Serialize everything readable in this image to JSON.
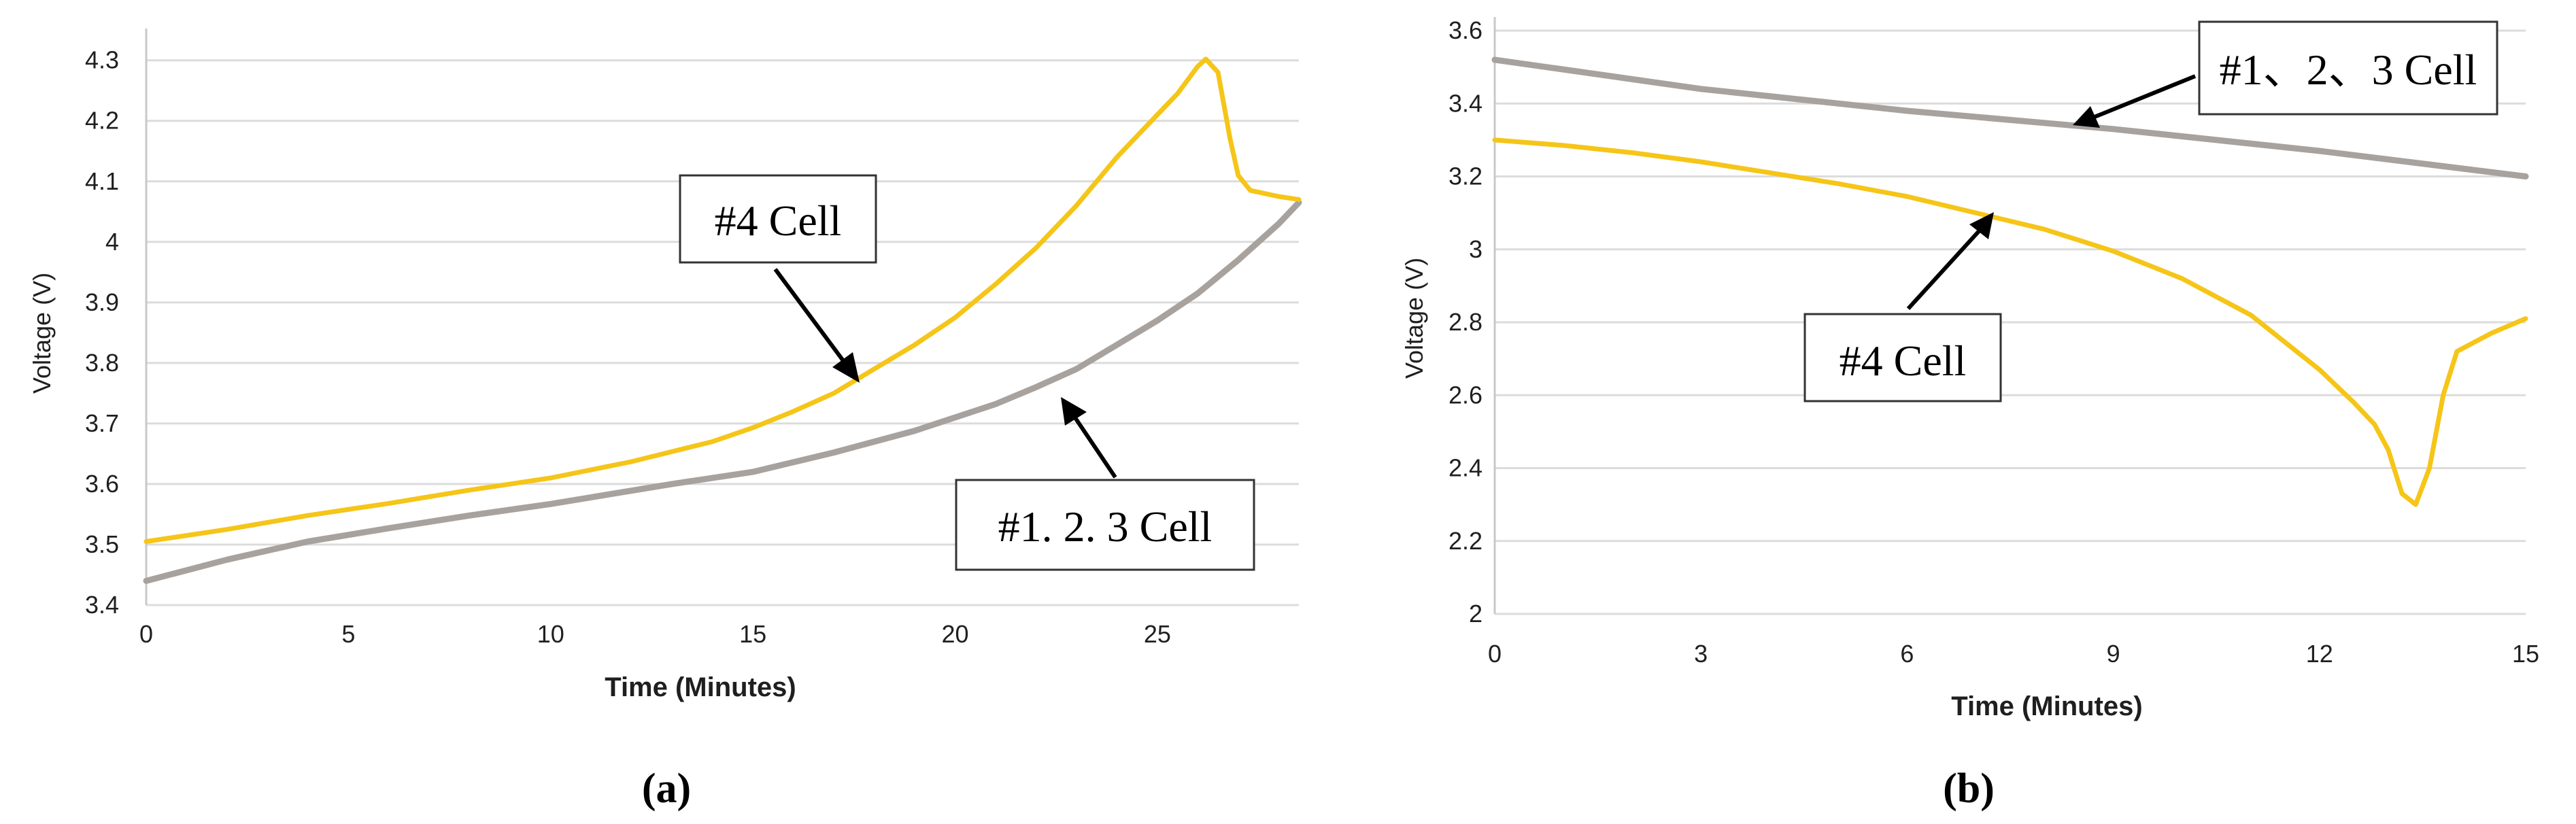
{
  "chart_data": [
    {
      "type": "line",
      "panel_label": "(a)",
      "xlabel": "Time (Minutes)",
      "ylabel": "Voltage (V)",
      "xlim": [
        0,
        28.5
      ],
      "ylim": [
        3.4,
        4.33
      ],
      "x_ticks": [
        0,
        5,
        10,
        15,
        20,
        25
      ],
      "y_ticks": [
        3.4,
        3.5,
        3.6,
        3.7,
        3.8,
        3.9,
        4,
        4.1,
        4.2,
        4.3
      ],
      "grid": true,
      "series": [
        {
          "name": "#4 Cell",
          "color": "#f5c518",
          "x": [
            0,
            2,
            4,
            6,
            8,
            9,
            10,
            12,
            14,
            15,
            16,
            17,
            18,
            19,
            20,
            21,
            22,
            23,
            24,
            25,
            25.5,
            26,
            26.2,
            26.5,
            26.8,
            27,
            27.3,
            28,
            28.5
          ],
          "y": [
            3.505,
            3.525,
            3.548,
            3.568,
            3.59,
            3.6,
            3.61,
            3.637,
            3.67,
            3.693,
            3.72,
            3.75,
            3.79,
            3.83,
            3.875,
            3.93,
            3.99,
            4.06,
            4.14,
            4.21,
            4.245,
            4.29,
            4.302,
            4.28,
            4.17,
            4.11,
            4.085,
            4.075,
            4.07
          ]
        },
        {
          "name": "#1. 2. 3 Cell",
          "color": "#a8a29e",
          "x": [
            0,
            2,
            4,
            6,
            8,
            10,
            13,
            15,
            17,
            19,
            20,
            21,
            22,
            23,
            24,
            25,
            26,
            27,
            28,
            28.5
          ],
          "y": [
            3.44,
            3.475,
            3.505,
            3.527,
            3.548,
            3.567,
            3.6,
            3.62,
            3.652,
            3.688,
            3.71,
            3.732,
            3.76,
            3.79,
            3.83,
            3.87,
            3.915,
            3.97,
            4.03,
            4.065
          ]
        }
      ],
      "annotations": [
        {
          "text": "#4 Cell",
          "target_series": "#4 Cell"
        },
        {
          "text": "#1. 2. 3 Cell",
          "target_series": "#1. 2. 3 Cell"
        }
      ]
    },
    {
      "type": "line",
      "panel_label": "(b)",
      "xlabel": "Time (Minutes)",
      "ylabel": "Voltage (V)",
      "xlim": [
        0,
        15
      ],
      "ylim": [
        2,
        3.6
      ],
      "x_ticks": [
        0,
        3,
        6,
        9,
        12,
        15
      ],
      "y_ticks": [
        2,
        2.2,
        2.4,
        2.6,
        2.8,
        3,
        3.2,
        3.4,
        3.6
      ],
      "grid": true,
      "series": [
        {
          "name": "#4 Cell",
          "color": "#f5c518",
          "x": [
            0,
            1,
            2,
            3,
            4,
            5,
            6,
            7,
            8,
            9,
            10,
            11,
            12,
            12.5,
            12.8,
            13,
            13.2,
            13.4,
            13.6,
            13.8,
            14,
            14.5,
            15
          ],
          "y": [
            3.3,
            3.285,
            3.265,
            3.24,
            3.21,
            3.18,
            3.145,
            3.1,
            3.055,
            2.995,
            2.92,
            2.82,
            2.67,
            2.58,
            2.52,
            2.45,
            2.33,
            2.3,
            2.4,
            2.6,
            2.72,
            2.77,
            2.81
          ]
        },
        {
          "name": "#1, 2, 3 Cell",
          "color": "#a8a29e",
          "x": [
            0,
            3,
            6,
            9,
            12,
            15
          ],
          "y": [
            3.52,
            3.44,
            3.38,
            3.33,
            3.27,
            3.2
          ]
        }
      ],
      "annotations": [
        {
          "text": "#1、2、3 Cell",
          "target_series": "#1, 2, 3 Cell"
        },
        {
          "text": "#4 Cell",
          "target_series": "#4 Cell"
        }
      ]
    }
  ],
  "colors": {
    "grid": "#dcdcdc",
    "axis": "#c8c8c8",
    "text": "#1f1f1f"
  }
}
